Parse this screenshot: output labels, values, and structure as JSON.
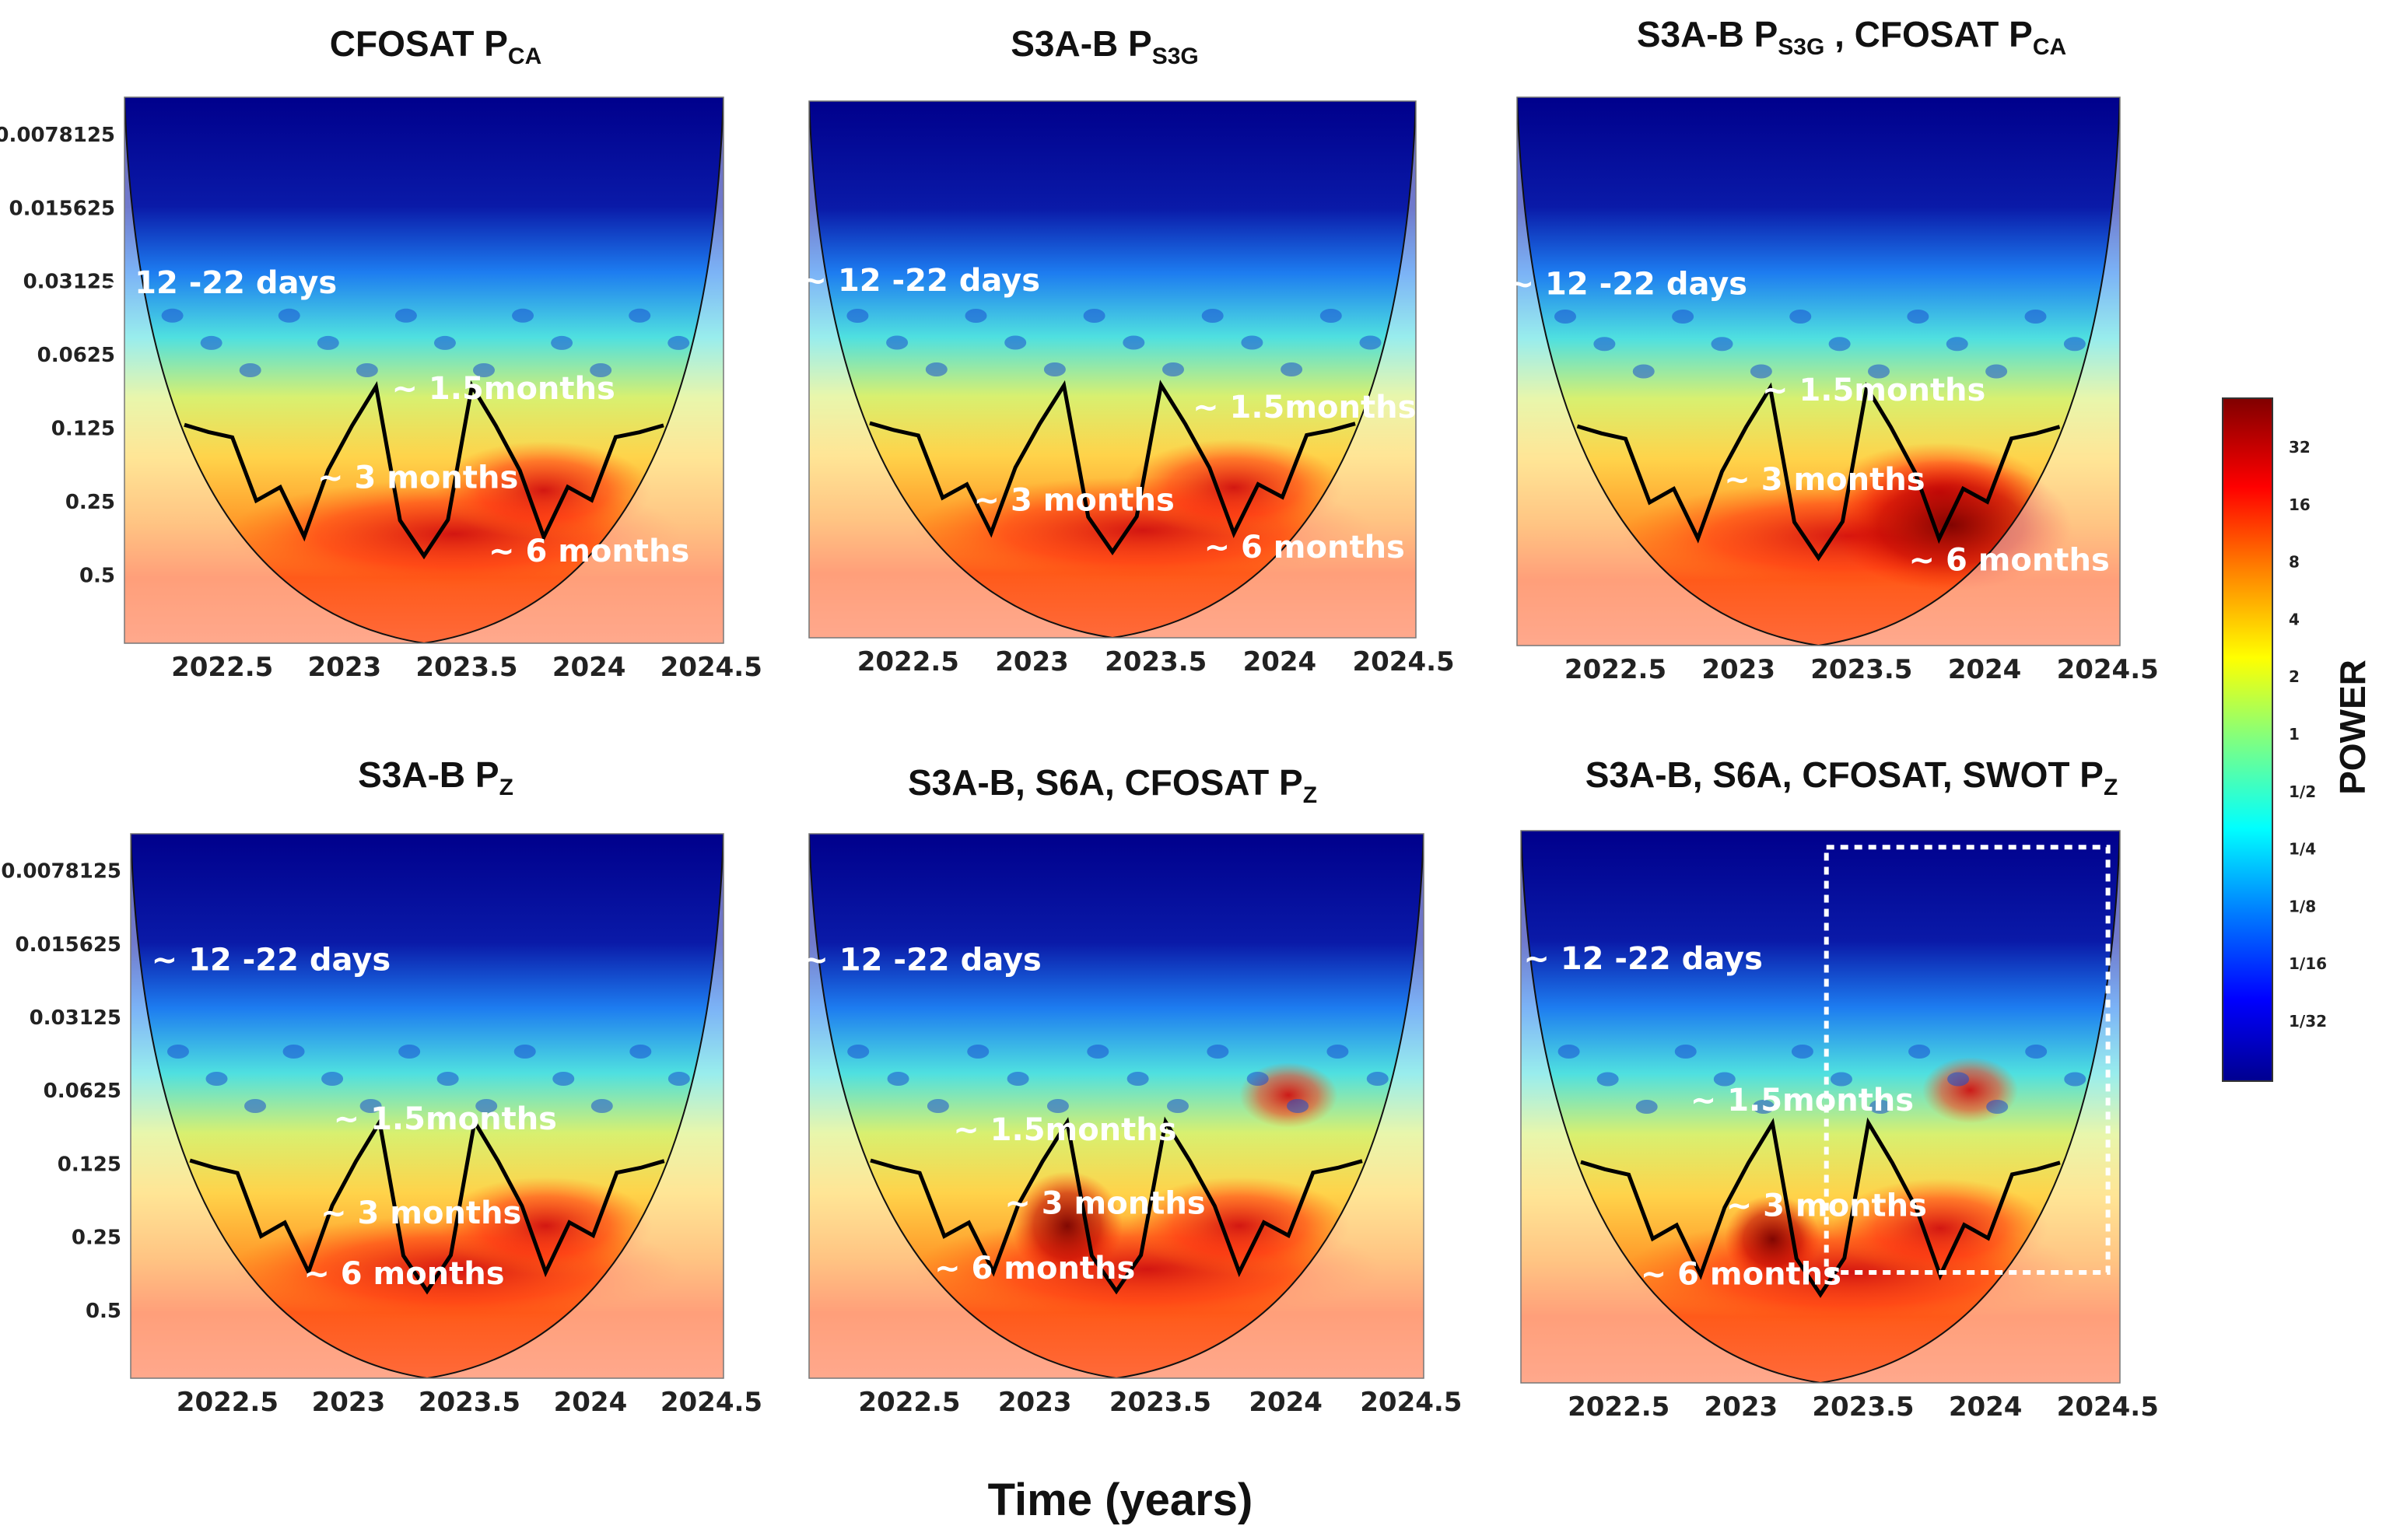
{
  "chart_data": {
    "type": "heatmap",
    "x_axis_title": "Time (years)",
    "colorbar": {
      "title": "POWER",
      "ticks": [
        "32",
        "16",
        "8",
        "4",
        "2",
        "1",
        "1/2",
        "1/4",
        "1/8",
        "1/16",
        "1/32"
      ],
      "colors": [
        "#00008f",
        "#0000ff",
        "#0080ff",
        "#00ffff",
        "#80ff80",
        "#ffff00",
        "#ff8000",
        "#ff0000",
        "#800000"
      ]
    },
    "y_ticks": [
      "0.0078125",
      "0.015625",
      "0.03125",
      "0.0625",
      "0.125",
      "0.25",
      "0.5"
    ],
    "y_range": [
      0.0055,
      0.95
    ],
    "x_range": [
      2022.1,
      2024.55
    ],
    "x_tick_values": [
      2022.5,
      2023,
      2023.5,
      2024,
      2024.5
    ],
    "x_tick_labels": [
      "2022.5",
      "2023",
      "2023.5",
      "2024",
      "2024.5"
    ],
    "panels": [
      {
        "title_main": "CFOSAT P",
        "title_sub": "CA",
        "title_main2": "",
        "title_sub2": "",
        "y_tick_labels_shown": true,
        "annotations": [
          {
            "text": "~ 12 -22 days",
            "x": 2022.48,
            "y": 0.035
          },
          {
            "text": "~ 1.5months",
            "x": 2023.65,
            "y": 0.095
          },
          {
            "text": "~ 3 months",
            "x": 2023.3,
            "y": 0.22
          },
          {
            "text": "~ 6 months",
            "x": 2024.0,
            "y": 0.44
          }
        ]
      },
      {
        "title_main": "S3A-B  P",
        "title_sub": "S3G",
        "title_main2": "",
        "title_sub2": "",
        "y_tick_labels_shown": false,
        "annotations": [
          {
            "text": "~ 12 -22 days",
            "x": 2022.55,
            "y": 0.034
          },
          {
            "text": "~ 1.5months",
            "x": 2024.1,
            "y": 0.115
          },
          {
            "text": "~ 3 months",
            "x": 2023.17,
            "y": 0.28
          },
          {
            "text": "~ 6 months",
            "x": 2024.1,
            "y": 0.44
          }
        ]
      },
      {
        "title_main": "S3A-B P",
        "title_sub": "S3G",
        "title_main2": " , CFOSAT P",
        "title_sub2": "CA",
        "y_tick_labels_shown": false,
        "annotations": [
          {
            "text": "~ 12 -22 days",
            "x": 2022.55,
            "y": 0.035
          },
          {
            "text": "~ 1.5months",
            "x": 2023.55,
            "y": 0.095
          },
          {
            "text": "~ 3 months",
            "x": 2023.35,
            "y": 0.22
          },
          {
            "text": "~ 6 months",
            "x": 2024.1,
            "y": 0.47
          }
        ]
      },
      {
        "title_main": "S3A-B P",
        "title_sub": "Z",
        "title_main2": "",
        "title_sub2": "",
        "y_tick_labels_shown": true,
        "annotations": [
          {
            "text": "~ 12 -22 days",
            "x": 2022.68,
            "y": 0.02
          },
          {
            "text": "~ 1.5months",
            "x": 2023.4,
            "y": 0.09
          },
          {
            "text": "~ 3 months",
            "x": 2023.3,
            "y": 0.22
          },
          {
            "text": "~ 6 months",
            "x": 2023.23,
            "y": 0.39
          }
        ]
      },
      {
        "title_main": "S3A-B, S6A, CFOSAT     P",
        "title_sub": "Z",
        "title_main2": "",
        "title_sub2": "",
        "y_tick_labels_shown": false,
        "annotations": [
          {
            "text": "~ 12 -22 days",
            "x": 2022.55,
            "y": 0.02
          },
          {
            "text": "~ 1.5months",
            "x": 2023.12,
            "y": 0.1
          },
          {
            "text": "~ 3 months",
            "x": 2023.28,
            "y": 0.2
          },
          {
            "text": "~ 6 months",
            "x": 2023.0,
            "y": 0.37
          }
        ]
      },
      {
        "title_main": "S3A-B, S6A, CFOSAT, SWOT   P",
        "title_sub": "Z",
        "title_main2": "",
        "title_sub2": "",
        "y_tick_labels_shown": false,
        "annotations": [
          {
            "text": "~ 12 -22 days",
            "x": 2022.6,
            "y": 0.02
          },
          {
            "text": "~ 1.5months",
            "x": 2023.25,
            "y": 0.075
          },
          {
            "text": "~ 3 months",
            "x": 2023.35,
            "y": 0.2
          },
          {
            "text": "~ 6 months",
            "x": 2023.0,
            "y": 0.38
          }
        ]
      }
    ]
  }
}
